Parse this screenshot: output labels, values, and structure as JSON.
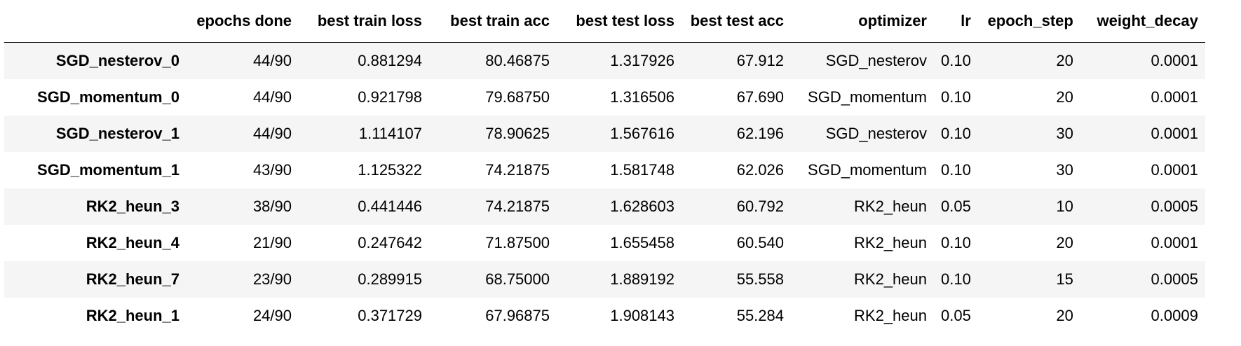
{
  "table": {
    "columns": [
      "",
      "epochs done",
      "best train loss",
      "best train acc",
      "best test loss",
      "best test acc",
      "optimizer",
      "lr",
      "epoch_step",
      "weight_decay"
    ],
    "rows": [
      [
        "SGD_nesterov_0",
        "44/90",
        "0.881294",
        "80.46875",
        "1.317926",
        "67.912",
        "SGD_nesterov",
        "0.10",
        "20",
        "0.0001"
      ],
      [
        "SGD_momentum_0",
        "44/90",
        "0.921798",
        "79.68750",
        "1.316506",
        "67.690",
        "SGD_momentum",
        "0.10",
        "20",
        "0.0001"
      ],
      [
        "SGD_nesterov_1",
        "44/90",
        "1.114107",
        "78.90625",
        "1.567616",
        "62.196",
        "SGD_nesterov",
        "0.10",
        "30",
        "0.0001"
      ],
      [
        "SGD_momentum_1",
        "43/90",
        "1.125322",
        "74.21875",
        "1.581748",
        "62.026",
        "SGD_momentum",
        "0.10",
        "30",
        "0.0001"
      ],
      [
        "RK2_heun_3",
        "38/90",
        "0.441446",
        "74.21875",
        "1.628603",
        "60.792",
        "RK2_heun",
        "0.05",
        "10",
        "0.0005"
      ],
      [
        "RK2_heun_4",
        "21/90",
        "0.247642",
        "71.87500",
        "1.655458",
        "60.540",
        "RK2_heun",
        "0.10",
        "20",
        "0.0001"
      ],
      [
        "RK2_heun_7",
        "23/90",
        "0.289915",
        "68.75000",
        "1.889192",
        "55.558",
        "RK2_heun",
        "0.10",
        "15",
        "0.0005"
      ],
      [
        "RK2_heun_1",
        "24/90",
        "0.371729",
        "67.96875",
        "1.908143",
        "55.284",
        "RK2_heun",
        "0.05",
        "20",
        "0.0009"
      ]
    ]
  }
}
